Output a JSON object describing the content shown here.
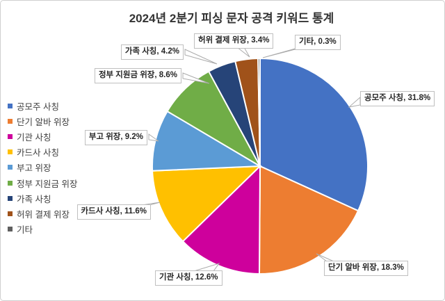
{
  "title": "2024년 2분기 피싱 문자 공격 키워드 통계",
  "colors": {
    "callout_border": "#bfbfbf",
    "leader_line": "#ababab",
    "slice_separator": "#ffffff",
    "title_text": "#333333",
    "label_text": "#262626",
    "legend_text": "#3f3f3f",
    "canvas_border": "#cfcfcf"
  },
  "chart_data": {
    "type": "pie",
    "title": "2024년 2분기 피싱 문자 공격 키워드 통계",
    "legend_position": "left",
    "start_angle_deg": 0,
    "direction": "clockwise",
    "label_format": "{name}, {value}%",
    "slices": [
      {
        "name": "공모주 사칭",
        "value": 31.8,
        "color": "#4472C4"
      },
      {
        "name": "단기 알바 위장",
        "value": 18.3,
        "color": "#ED7D31"
      },
      {
        "name": "기관 사칭",
        "value": 12.6,
        "color": "#CE009C"
      },
      {
        "name": "카드사 사칭",
        "value": 11.6,
        "color": "#FFC000"
      },
      {
        "name": "부고 위장",
        "value": 9.2,
        "color": "#5B9BD5"
      },
      {
        "name": "정부 지원금 위장",
        "value": 8.6,
        "color": "#70AD47"
      },
      {
        "name": "가족 사칭",
        "value": 4.2,
        "color": "#264478"
      },
      {
        "name": "허위 결제 위장",
        "value": 3.4,
        "color": "#A0521A"
      },
      {
        "name": "기타",
        "value": 0.3,
        "color": "#5f5f5f"
      }
    ]
  }
}
